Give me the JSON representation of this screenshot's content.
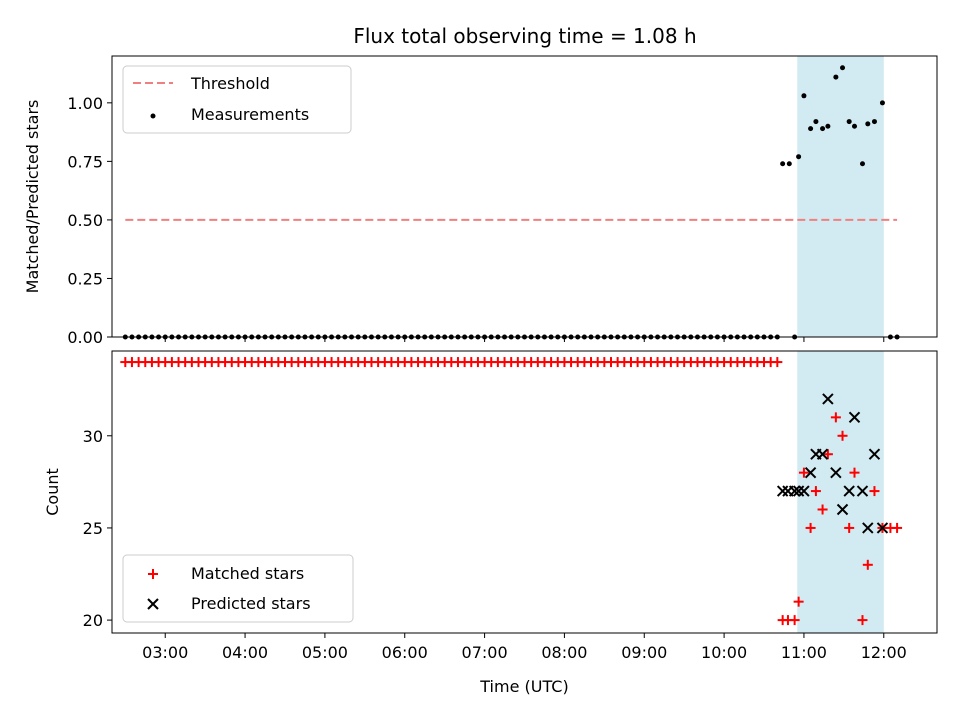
{
  "title": "Flux total observing time = 1.08 h",
  "colors": {
    "threshold": "#f08080",
    "measurement": "#000000",
    "matched": "#ff0000",
    "predicted": "#000000",
    "span": "#add8e6"
  },
  "chart_data": [
    {
      "type": "scatter",
      "ylabel": "Matched/Predicted stars",
      "xlabel": "",
      "xlim": [
        "02:20",
        "12:40"
      ],
      "ylim": [
        0,
        1.2
      ],
      "yticks": [
        0.0,
        0.25,
        0.5,
        0.75,
        1.0
      ],
      "ytick_labels": [
        "0.00",
        "0.25",
        "0.50",
        "0.75",
        "1.00"
      ],
      "span": {
        "start": "10:55",
        "end": "12:00"
      },
      "legend_placement": "top-left",
      "threshold": {
        "name": "Threshold",
        "value": 0.5,
        "x_start": "02:30",
        "x_end": "12:10"
      },
      "measurements": {
        "name": "Measurements",
        "zero_x_start": "02:30",
        "zero_x_end": "10:40",
        "zero_step_min": 5,
        "points": [
          {
            "x": "10:44",
            "y": 0.74
          },
          {
            "x": "10:49",
            "y": 0.74
          },
          {
            "x": "10:53",
            "y": 0.0
          },
          {
            "x": "10:56",
            "y": 0.77
          },
          {
            "x": "11:00",
            "y": 1.03
          },
          {
            "x": "11:05",
            "y": 0.89
          },
          {
            "x": "11:09",
            "y": 0.92
          },
          {
            "x": "11:14",
            "y": 0.89
          },
          {
            "x": "11:18",
            "y": 0.9
          },
          {
            "x": "11:24",
            "y": 1.11
          },
          {
            "x": "11:29",
            "y": 1.15
          },
          {
            "x": "11:34",
            "y": 0.92
          },
          {
            "x": "11:38",
            "y": 0.9
          },
          {
            "x": "11:44",
            "y": 0.74
          },
          {
            "x": "11:48",
            "y": 0.91
          },
          {
            "x": "11:53",
            "y": 0.92
          },
          {
            "x": "11:59",
            "y": 1.0
          },
          {
            "x": "12:05",
            "y": 0.0
          },
          {
            "x": "12:10",
            "y": 0.0
          }
        ]
      }
    },
    {
      "type": "scatter",
      "ylabel": "Count",
      "xlabel": "Time (UTC)",
      "xlim": [
        "02:20",
        "12:40"
      ],
      "ylim": [
        19.3,
        34.6
      ],
      "yticks": [
        20,
        25,
        30
      ],
      "ytick_labels": [
        "20",
        "25",
        "30"
      ],
      "xticks": [
        "03:00",
        "04:00",
        "05:00",
        "06:00",
        "07:00",
        "08:00",
        "09:00",
        "10:00",
        "11:00",
        "12:00"
      ],
      "span": {
        "start": "10:55",
        "end": "12:00"
      },
      "legend_placement": "bottom-left",
      "matched_flat": {
        "y": 34,
        "x_start": "02:30",
        "x_end": "10:40",
        "step_min": 5
      },
      "series": [
        {
          "name": "Matched stars",
          "marker": "plus",
          "points": [
            {
              "x": "10:44",
              "y": 20
            },
            {
              "x": "10:48",
              "y": 20
            },
            {
              "x": "10:53",
              "y": 20
            },
            {
              "x": "10:56",
              "y": 21
            },
            {
              "x": "11:00",
              "y": 28
            },
            {
              "x": "11:05",
              "y": 25
            },
            {
              "x": "11:09",
              "y": 27
            },
            {
              "x": "11:14",
              "y": 26
            },
            {
              "x": "11:18",
              "y": 29
            },
            {
              "x": "11:24",
              "y": 31
            },
            {
              "x": "11:29",
              "y": 30
            },
            {
              "x": "11:34",
              "y": 25
            },
            {
              "x": "11:38",
              "y": 28
            },
            {
              "x": "11:44",
              "y": 20
            },
            {
              "x": "11:48",
              "y": 23
            },
            {
              "x": "11:53",
              "y": 27
            },
            {
              "x": "11:59",
              "y": 25
            },
            {
              "x": "12:05",
              "y": 25
            },
            {
              "x": "12:10",
              "y": 25
            }
          ]
        },
        {
          "name": "Predicted stars",
          "marker": "cross",
          "points": [
            {
              "x": "10:44",
              "y": 27
            },
            {
              "x": "10:48",
              "y": 27
            },
            {
              "x": "10:53",
              "y": 27
            },
            {
              "x": "10:56",
              "y": 27
            },
            {
              "x": "11:00",
              "y": 27
            },
            {
              "x": "11:05",
              "y": 28
            },
            {
              "x": "11:09",
              "y": 29
            },
            {
              "x": "11:14",
              "y": 29
            },
            {
              "x": "11:18",
              "y": 32
            },
            {
              "x": "11:24",
              "y": 28
            },
            {
              "x": "11:29",
              "y": 26
            },
            {
              "x": "11:34",
              "y": 27
            },
            {
              "x": "11:38",
              "y": 31
            },
            {
              "x": "11:44",
              "y": 27
            },
            {
              "x": "11:48",
              "y": 25
            },
            {
              "x": "11:53",
              "y": 29
            },
            {
              "x": "11:59",
              "y": 25
            }
          ]
        }
      ]
    }
  ]
}
